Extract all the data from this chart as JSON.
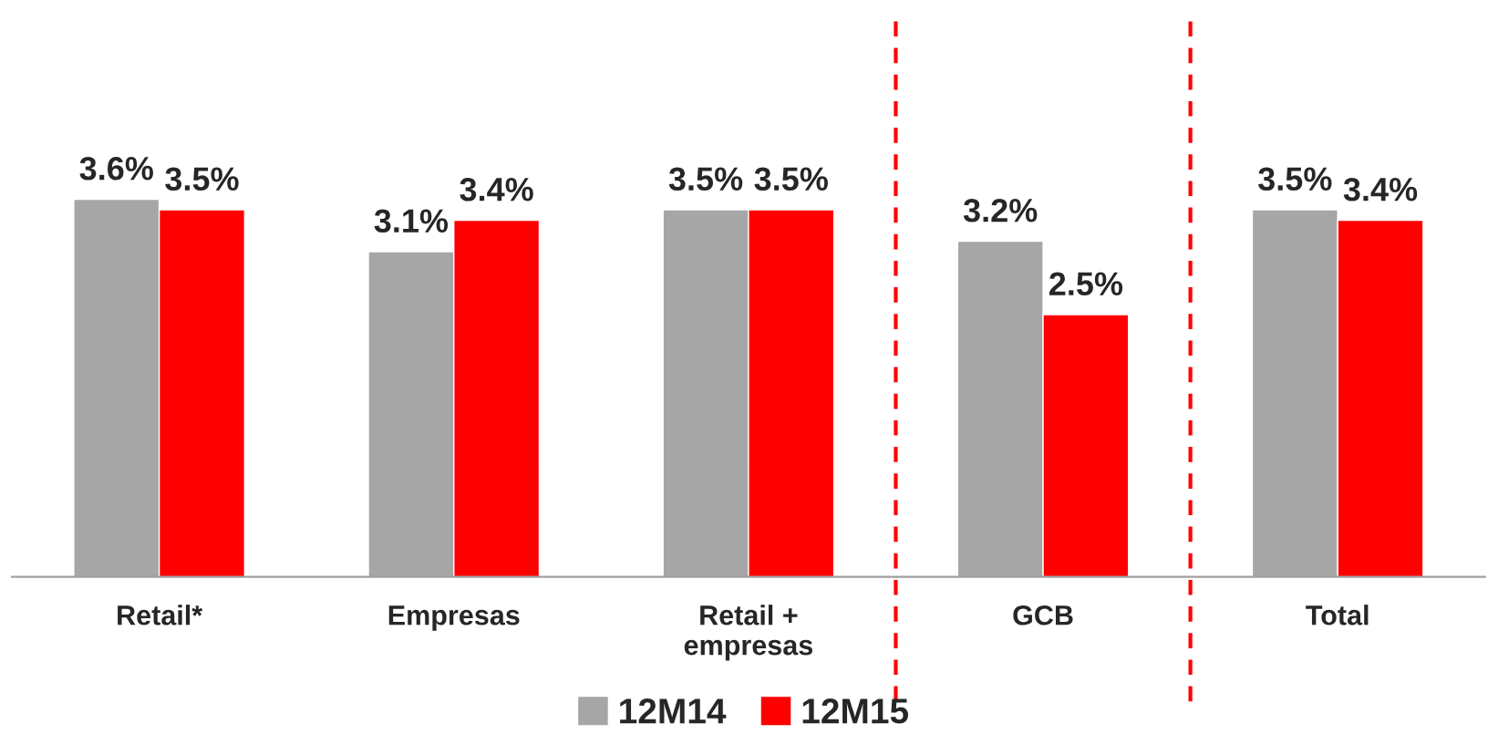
{
  "chart_data": {
    "type": "bar",
    "categories": [
      "Retail*",
      "Empresas",
      "Retail +\nempresas",
      "GCB",
      "Total"
    ],
    "series": [
      {
        "name": "12M14",
        "color": "#a6a6a6",
        "values": [
          3.6,
          3.1,
          3.5,
          3.2,
          3.5
        ],
        "value_labels": [
          "3.6%",
          "3.1%",
          "3.5%",
          "3.2%",
          "3.5%"
        ]
      },
      {
        "name": "12M15",
        "color": "#ff0000",
        "values": [
          3.5,
          3.4,
          3.5,
          2.5,
          3.4
        ],
        "value_labels": [
          "3.5%",
          "3.4%",
          "3.5%",
          "2.5%",
          "3.4%"
        ]
      }
    ],
    "ylim": [
      0,
      5.4
    ],
    "tick_labels": "x",
    "data_labels": true,
    "grid": false,
    "legend": "bottom"
  }
}
